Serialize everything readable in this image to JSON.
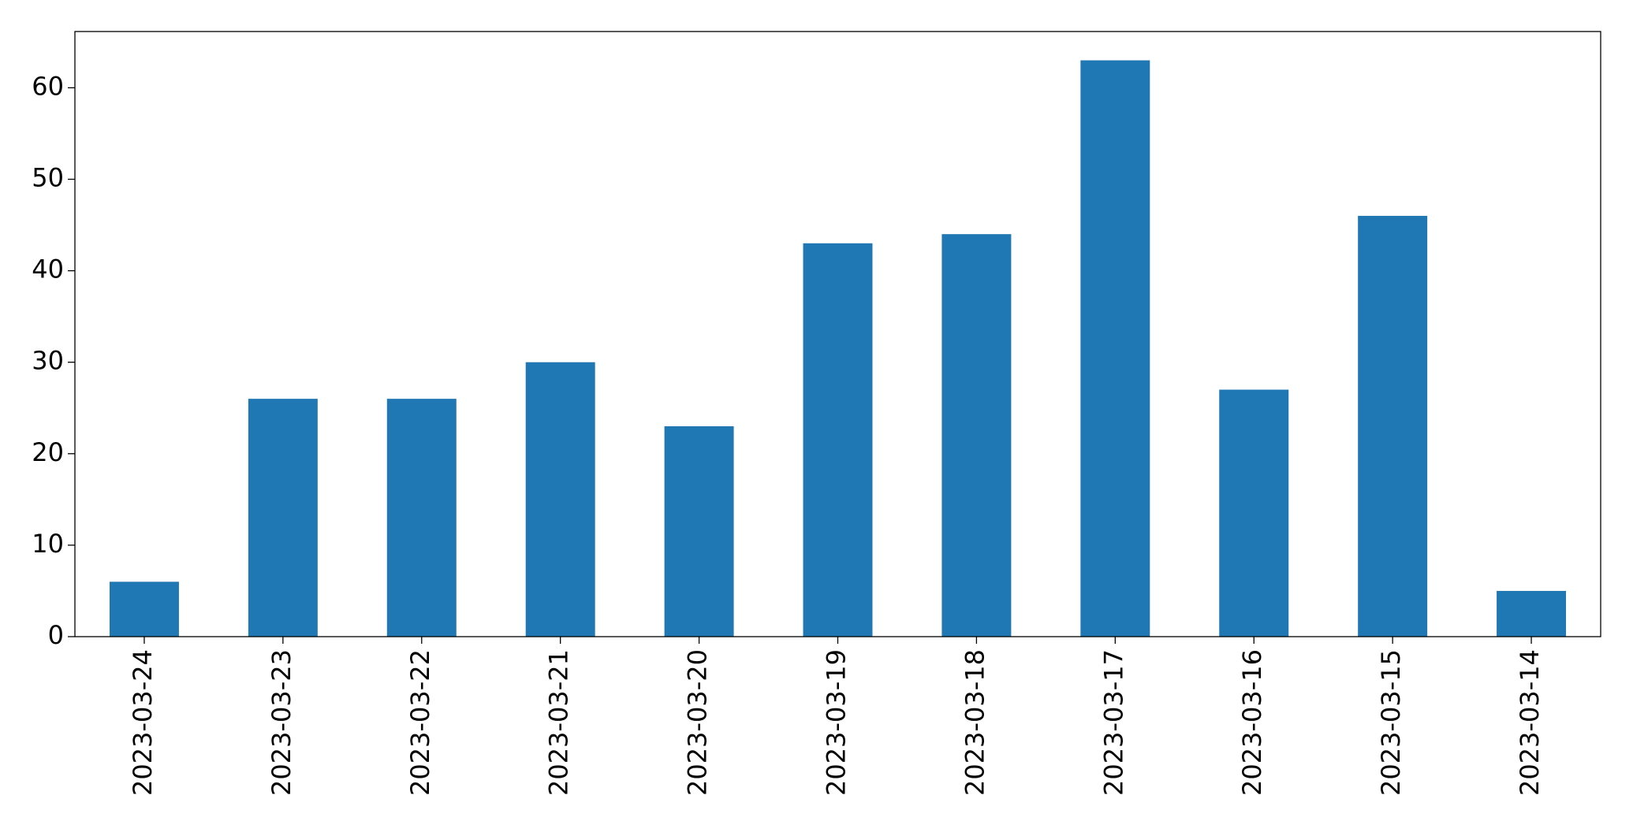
{
  "chart_data": {
    "type": "bar",
    "categories": [
      "2023-03-24",
      "2023-03-23",
      "2023-03-22",
      "2023-03-21",
      "2023-03-20",
      "2023-03-19",
      "2023-03-18",
      "2023-03-17",
      "2023-03-16",
      "2023-03-15",
      "2023-03-14"
    ],
    "values": [
      6,
      26,
      26,
      30,
      23,
      43,
      44,
      63,
      27,
      46,
      5
    ],
    "color": "#1f77b4",
    "ylim": [
      0,
      66.15
    ],
    "yticks": [
      0,
      10,
      20,
      30,
      40,
      50,
      60
    ],
    "grid": false
  }
}
